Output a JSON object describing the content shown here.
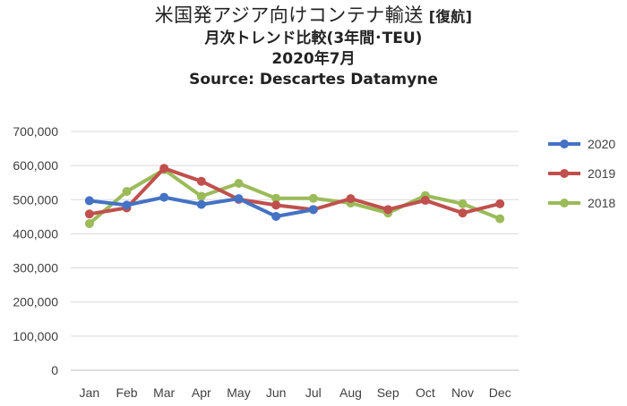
{
  "title": "米国発アジア向けコンテナ輸送",
  "title_tag": "[復航]",
  "subtitle": "月次トレンド比較(3年間･TEU)",
  "date_line": "2020年7月",
  "source": "Source: Descartes Datamyne",
  "chart_data": {
    "type": "line",
    "categories": [
      "Jan",
      "Feb",
      "Mar",
      "Apr",
      "May",
      "Jun",
      "Jul",
      "Aug",
      "Sep",
      "Oct",
      "Nov",
      "Dec"
    ],
    "y_ticks": [
      "0",
      "100,000",
      "200,000",
      "300,000",
      "400,000",
      "500,000",
      "600,000",
      "700,000"
    ],
    "ylim": [
      0,
      700000
    ],
    "grid": true,
    "legend_position": "right",
    "series": [
      {
        "name": "2020",
        "color": "#4472C4",
        "values": [
          497000,
          484000,
          507000,
          486000,
          503000,
          451000,
          471000,
          null,
          null,
          null,
          null,
          null
        ]
      },
      {
        "name": "2019",
        "color": "#C0504D",
        "values": [
          458000,
          476000,
          592000,
          554000,
          501000,
          484000,
          471000,
          503000,
          471000,
          498000,
          461000,
          488000
        ]
      },
      {
        "name": "2018",
        "color": "#9BBB59",
        "values": [
          430000,
          524000,
          588000,
          510000,
          548000,
          504000,
          504000,
          490000,
          461000,
          512000,
          488000,
          444000
        ]
      }
    ]
  }
}
